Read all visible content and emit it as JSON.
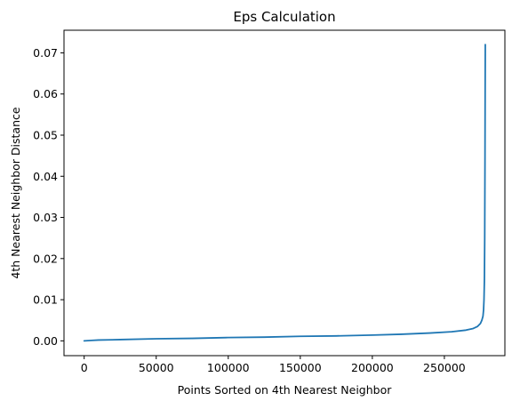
{
  "chart_data": {
    "type": "line",
    "title": "Eps Calculation",
    "xlabel": "Points Sorted on 4th Nearest Neighbor",
    "ylabel": "4th Nearest Neighbor Distance",
    "xlim": [
      -14000,
      292000
    ],
    "ylim": [
      -0.0036,
      0.0755
    ],
    "xticks": [
      0,
      50000,
      100000,
      150000,
      200000,
      250000
    ],
    "xtick_labels": [
      "0",
      "50000",
      "100000",
      "150000",
      "200000",
      "250000"
    ],
    "yticks": [
      0.0,
      0.01,
      0.02,
      0.03,
      0.04,
      0.05,
      0.06,
      0.07
    ],
    "ytick_labels": [
      "0.00",
      "0.01",
      "0.02",
      "0.03",
      "0.04",
      "0.05",
      "0.06",
      "0.07"
    ],
    "grid": false,
    "series": [
      {
        "color": "#1f77b4",
        "x": [
          0,
          5000,
          10000,
          25000,
          50000,
          75000,
          100000,
          125000,
          150000,
          175000,
          200000,
          220000,
          240000,
          255000,
          265000,
          270000,
          273000,
          275000,
          276000,
          276800,
          277200,
          277500,
          277800,
          278000,
          278200,
          278300,
          278400
        ],
        "y": [
          0.0,
          0.0001,
          0.0002,
          0.0003,
          0.0005,
          0.0006,
          0.0008,
          0.0009,
          0.0011,
          0.0012,
          0.0014,
          0.0016,
          0.0019,
          0.0022,
          0.0026,
          0.003,
          0.0035,
          0.0042,
          0.005,
          0.006,
          0.0075,
          0.01,
          0.015,
          0.025,
          0.045,
          0.06,
          0.072
        ]
      }
    ]
  }
}
